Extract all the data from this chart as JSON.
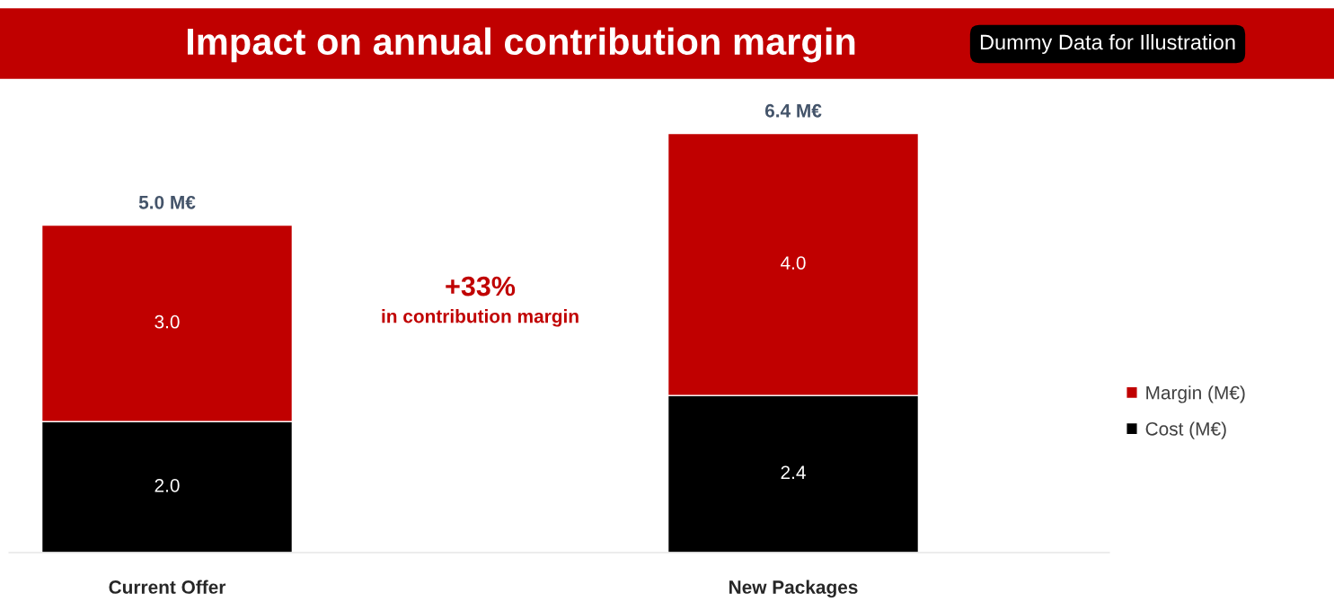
{
  "chart_data": {
    "type": "bar",
    "title": "Impact on annual contribution margin",
    "subtitle": "Dummy Data for Illustration",
    "categories": [
      "Current Offer",
      "New Packages"
    ],
    "stacked": true,
    "series": [
      {
        "name": "Cost (M€)",
        "color": "#000000",
        "values": [
          2.0,
          2.4
        ],
        "value_labels": [
          "2.0",
          "2.4"
        ]
      },
      {
        "name": "Margin (M€)",
        "color": "#c00000",
        "values": [
          3.0,
          4.0
        ],
        "value_labels": [
          "3.0",
          "4.0"
        ]
      }
    ],
    "totals": [
      "5.0 M€",
      "6.4 M€"
    ],
    "annotations": [
      "+33%",
      "in contribution margin"
    ],
    "legend": "right",
    "grid": false
  }
}
